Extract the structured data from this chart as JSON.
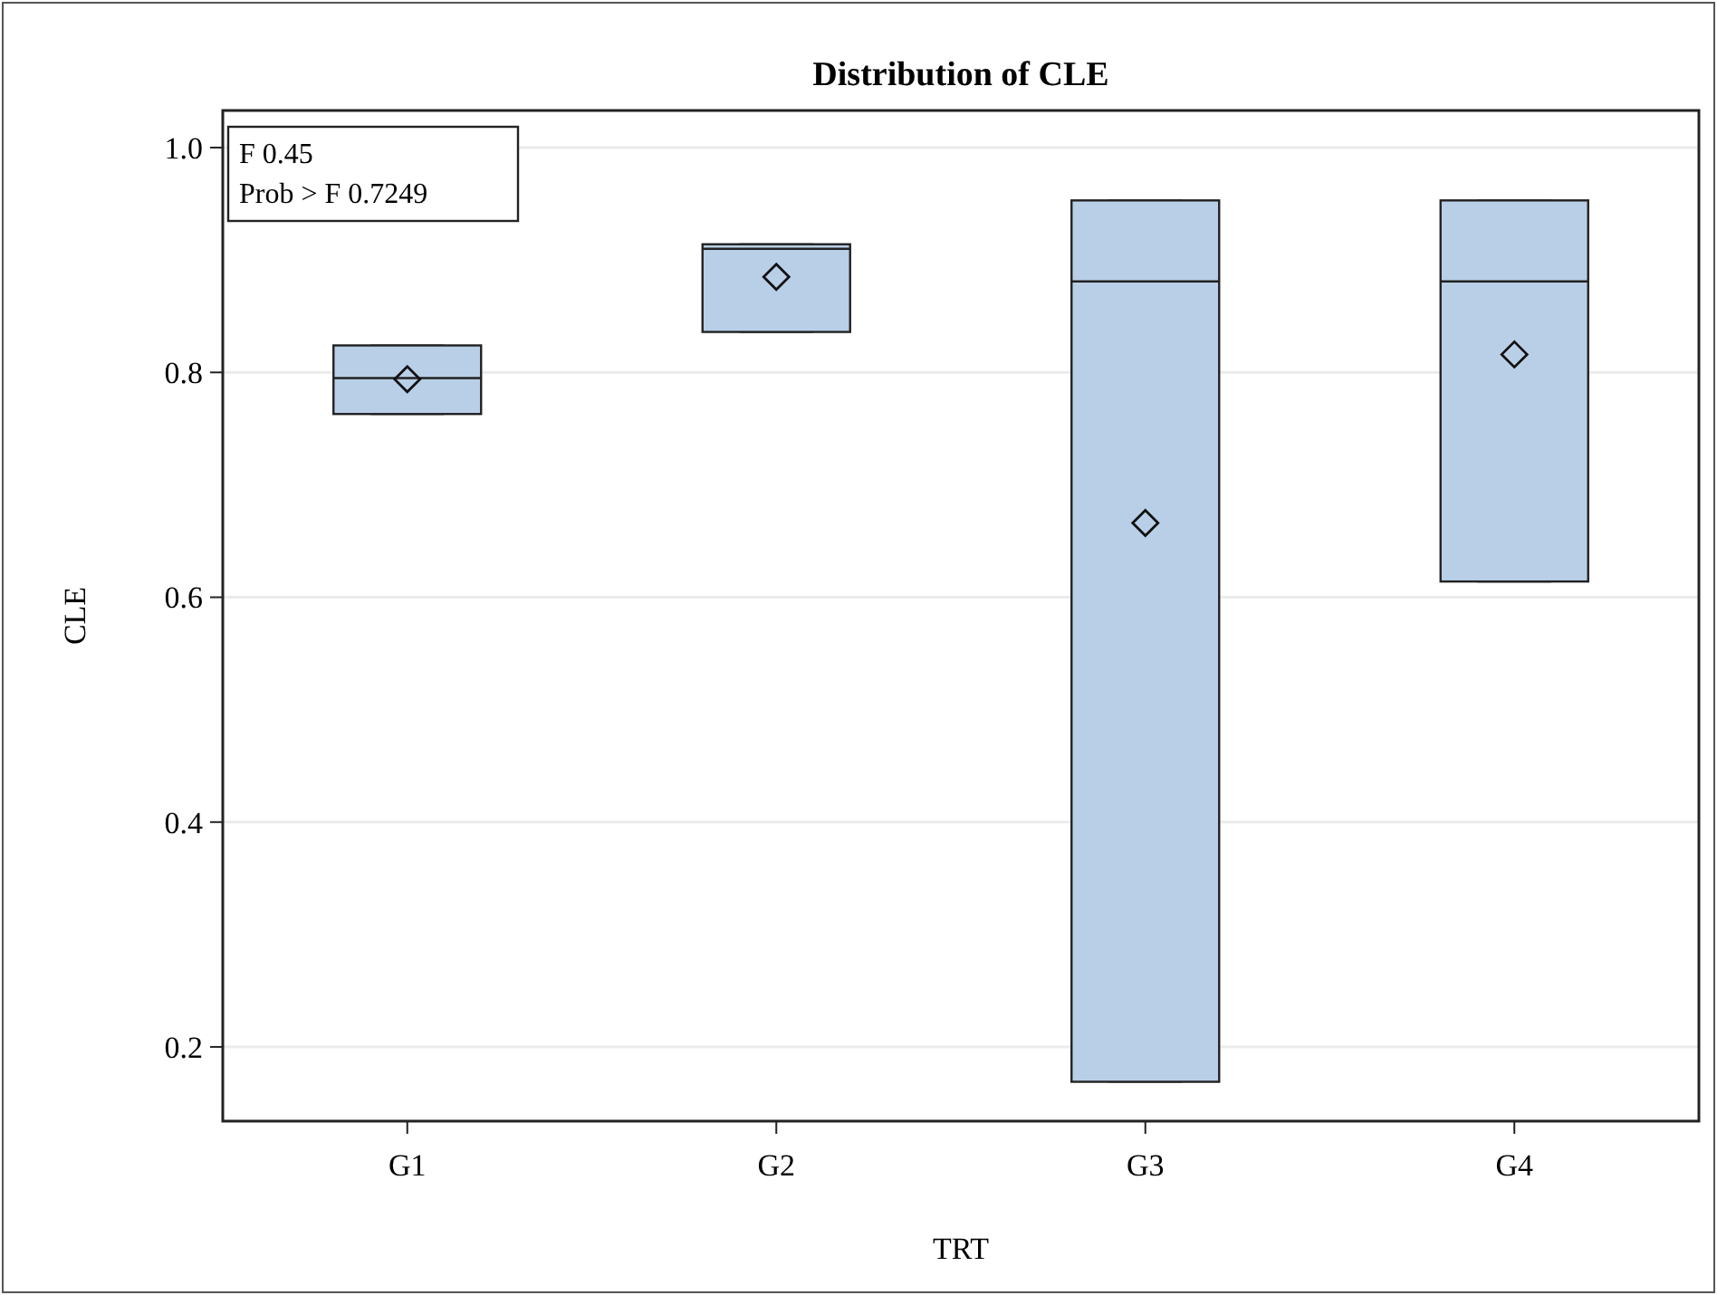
{
  "chart_data": {
    "type": "box",
    "title": "Distribution of CLE",
    "xlabel": "TRT",
    "ylabel": "CLE",
    "categories": [
      "G1",
      "G2",
      "G3",
      "G4"
    ],
    "series": [
      {
        "color": "#b9cfe7",
        "boxes": [
          {
            "low": 0.763,
            "q1": 0.763,
            "median": 0.795,
            "q3": 0.824,
            "high": 0.824,
            "mean": 0.794
          },
          {
            "low": 0.836,
            "q1": 0.836,
            "median": 0.91,
            "q3": 0.914,
            "high": 0.914,
            "mean": 0.885
          },
          {
            "low": 0.169,
            "q1": 0.169,
            "median": 0.881,
            "q3": 0.953,
            "high": 0.953,
            "mean": 0.666
          },
          {
            "low": 0.614,
            "q1": 0.614,
            "median": 0.881,
            "q3": 0.953,
            "high": 0.953,
            "mean": 0.816
          }
        ]
      }
    ],
    "ylim": [
      0.134,
      1.033
    ],
    "yticks": [
      {
        "value": 0.2,
        "label": "0.2"
      },
      {
        "value": 0.4,
        "label": "0.4"
      },
      {
        "value": 0.6,
        "label": "0.6"
      },
      {
        "value": 0.8,
        "label": "0.8"
      },
      {
        "value": 1.0,
        "label": "1.0"
      }
    ],
    "grid": "y",
    "marker": "diamond",
    "annotations": [
      "F 0.45",
      "Prob > F 0.7249"
    ]
  }
}
